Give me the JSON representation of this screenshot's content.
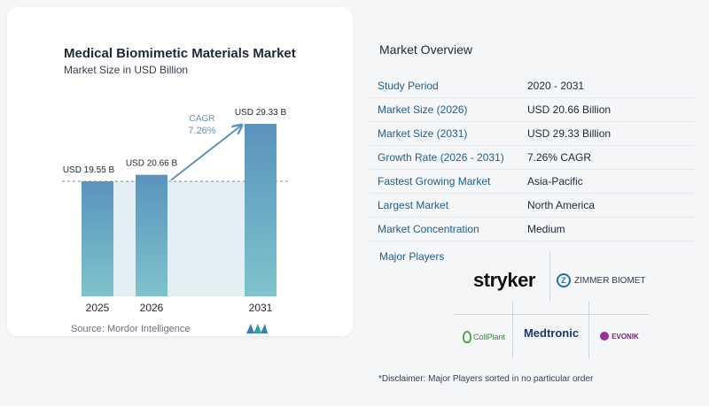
{
  "chart_data": {
    "type": "bar",
    "title": "Medical Biomimetic Materials Market",
    "subtitle": "Market Size in USD Billion",
    "categories": [
      "2025",
      "2026",
      "2031"
    ],
    "values": [
      19.55,
      20.66,
      29.33
    ],
    "data_labels": [
      "USD 19.55 B",
      "USD 20.66 B",
      "USD 29.33 B"
    ],
    "cagr_label": "CAGR",
    "cagr_value": "7.26%",
    "grid": false,
    "bar_color": "#5a93bd"
  },
  "source": "Source:  Mordor Intelligence",
  "overview": {
    "title": "Market Overview",
    "rows": [
      {
        "label": "Study Period",
        "value": "2020 - 2031"
      },
      {
        "label": "Market Size (2026)",
        "value": "USD 20.66 Billion"
      },
      {
        "label": "Market Size (2031)",
        "value": "USD 29.33 Billion"
      },
      {
        "label": "Growth Rate (2026 - 2031)",
        "value": "7.26% CAGR"
      },
      {
        "label": "Fastest Growing Market",
        "value": "Asia-Pacific"
      },
      {
        "label": "Largest Market",
        "value": "North America"
      },
      {
        "label": "Market Concentration",
        "value": "Medium"
      }
    ],
    "players_label": "Major Players",
    "players": {
      "stryker": "stryker",
      "zimmer": "ZIMMER BIOMET",
      "collplant": "CollPlant",
      "medtronic": "Medtronic",
      "evonik": "EVONIK"
    }
  },
  "disclaimer": "*Disclaimer: Major Players sorted in no particular order"
}
